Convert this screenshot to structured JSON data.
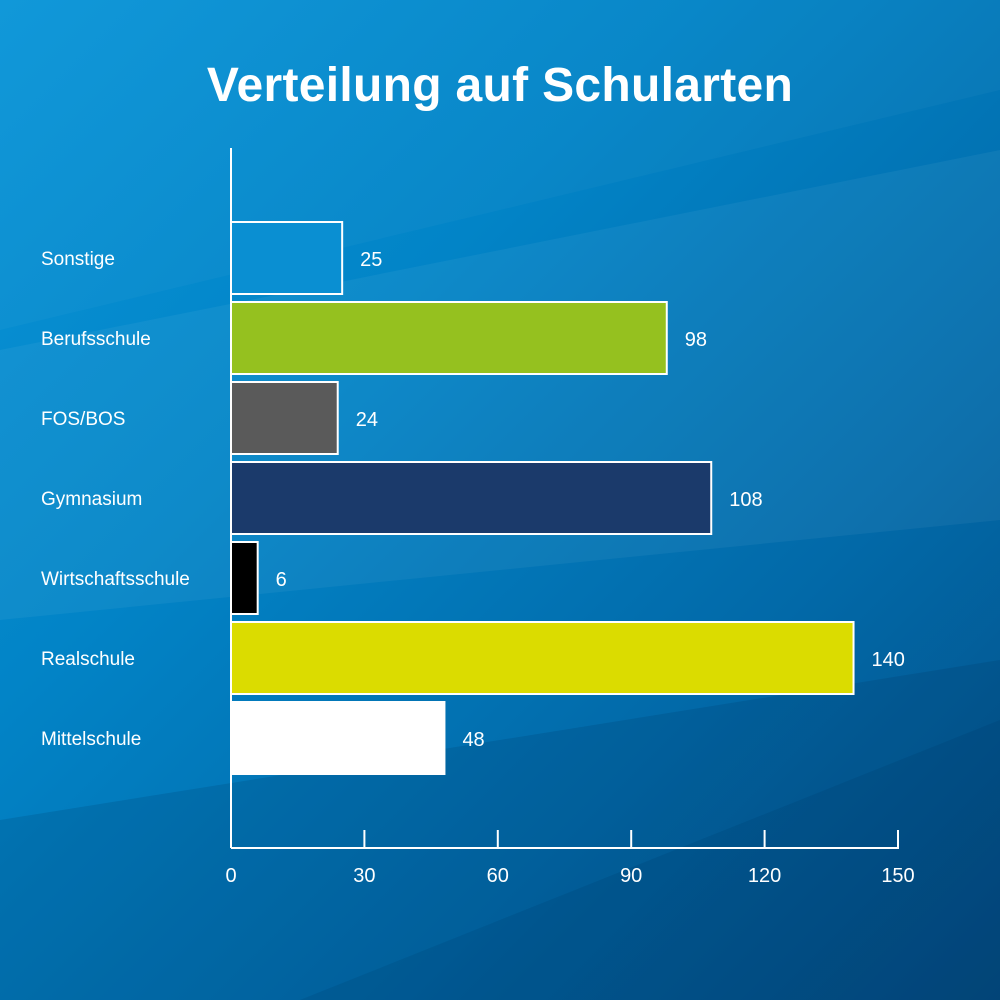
{
  "chart_data": {
    "type": "bar",
    "orientation": "horizontal",
    "title": "Verteilung auf Schularten",
    "xlabel": "",
    "ylabel": "",
    "categories": [
      "Sonstige",
      "Berufsschule",
      "FOS/BOS",
      "Gymnasium",
      "Wirtschaftsschule",
      "Realschule",
      "Mittelschule"
    ],
    "values": [
      25,
      98,
      24,
      108,
      6,
      140,
      48
    ],
    "value_labels": [
      "25",
      "98",
      "24",
      "108",
      "6",
      "140",
      "48"
    ],
    "colors": [
      "#0a8fd2",
      "#95c11f",
      "#5a5a5a",
      "#1b3a6b",
      "#000000",
      "#dbdc00",
      "#ffffff"
    ],
    "xlim": [
      0,
      150
    ],
    "xticks": [
      0,
      30,
      60,
      90,
      120,
      150
    ],
    "xtick_labels": [
      "0",
      "30",
      "60",
      "90",
      "120",
      "150"
    ],
    "grid": false,
    "legend": "none"
  }
}
